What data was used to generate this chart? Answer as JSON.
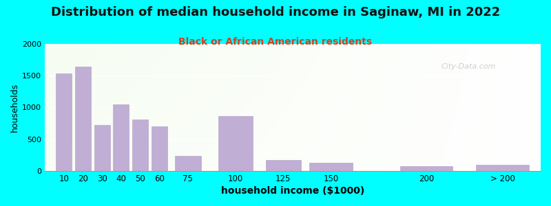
{
  "title": "Distribution of median household income in Saginaw, MI in 2022",
  "subtitle": "Black or African American residents",
  "xlabel": "household income ($1000)",
  "ylabel": "households",
  "title_fontsize": 13,
  "subtitle_fontsize": 10,
  "bar_color": "#c0aed4",
  "bar_edge_color": "#b09cc4",
  "background_outer": "#00ffff",
  "ylim": [
    0,
    2000
  ],
  "yticks": [
    0,
    500,
    1000,
    1500,
    2000
  ],
  "categories": [
    "10",
    "20",
    "30",
    "40",
    "50",
    "60",
    "75",
    "100",
    "125",
    "150",
    "200",
    "> 200"
  ],
  "values": [
    1540,
    1640,
    720,
    1050,
    810,
    700,
    240,
    870,
    175,
    130,
    75,
    100
  ],
  "watermark": "City-Data.com",
  "bar_positions": [
    10,
    20,
    30,
    40,
    50,
    60,
    75,
    100,
    125,
    150,
    200,
    240
  ],
  "bar_widths": [
    9,
    9,
    9,
    9,
    9,
    9,
    15,
    20,
    20,
    25,
    30,
    30
  ],
  "xtick_positions": [
    10,
    20,
    30,
    40,
    50,
    60,
    75,
    100,
    125,
    150,
    200,
    240
  ],
  "xlim": [
    0,
    260
  ]
}
